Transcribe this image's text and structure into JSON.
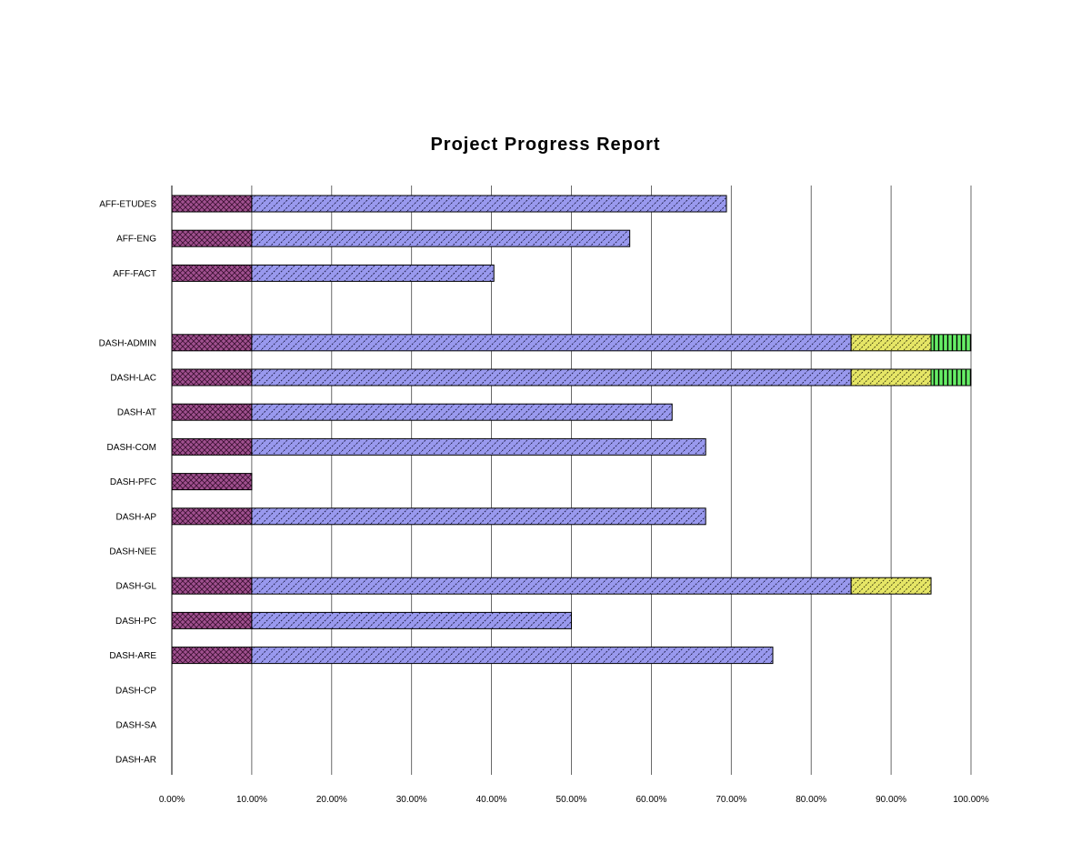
{
  "chart_data": {
    "type": "bar",
    "orientation": "horizontal",
    "stacked": true,
    "title": "Project Progress Report",
    "xlabel": "",
    "ylabel": "",
    "xlim": [
      0,
      1
    ],
    "x_ticks": [
      "0.00%",
      "10.00%",
      "20.00%",
      "30.00%",
      "40.00%",
      "50.00%",
      "60.00%",
      "70.00%",
      "80.00%",
      "90.00%",
      "100.00%"
    ],
    "grid": "vertical",
    "legend": "none",
    "categories": [
      "AFF-ETUDES",
      "AFF-ENG",
      "AFF-FACT",
      "",
      "DASH-ADMIN",
      "DASH-LAC",
      "DASH-AT",
      "DASH-COM",
      "DASH-PFC",
      "DASH-AP",
      "DASH-NEE",
      "DASH-GL",
      "DASH-PC",
      "DASH-ARE",
      "DASH-CP",
      "DASH-SA",
      "DASH-AR"
    ],
    "series": [
      {
        "color": "#a0508f",
        "pattern": "crosshatch",
        "values": [
          0.1,
          0.1,
          0.1,
          0,
          0.1,
          0.1,
          0.1,
          0.1,
          0.1,
          0.1,
          0,
          0.1,
          0.1,
          0.1,
          0,
          0,
          0
        ]
      },
      {
        "color": "#9999ee",
        "pattern": "diagonal-dashed",
        "values": [
          0.594,
          0.473,
          0.303,
          0,
          0.75,
          0.75,
          0.526,
          0.568,
          0,
          0.568,
          0,
          0.75,
          0.4,
          0.652,
          0,
          0,
          0
        ]
      },
      {
        "color": "#e6e666",
        "pattern": "diagonal-back",
        "values": [
          0,
          0,
          0,
          0,
          0.1,
          0.1,
          0,
          0,
          0,
          0,
          0,
          0.1,
          0,
          0,
          0,
          0,
          0
        ]
      },
      {
        "color": "#66ee66",
        "pattern": "vertical-stripes",
        "values": [
          0,
          0,
          0,
          0,
          0.05,
          0.05,
          0,
          0,
          0,
          0,
          0,
          0,
          0,
          0,
          0,
          0,
          0
        ]
      }
    ]
  }
}
